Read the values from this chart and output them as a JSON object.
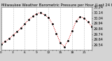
{
  "title": "Milwaukee Weather Barometric Pressure per Hour (Last 24 Hours)",
  "bg_color": "#d4d4d4",
  "plot_bg_color": "#ffffff",
  "line_color": "#cc0000",
  "marker_color": "#000000",
  "grid_color": "#888888",
  "hours": [
    0,
    1,
    2,
    3,
    4,
    5,
    6,
    7,
    8,
    9,
    10,
    11,
    12,
    13,
    14,
    15,
    16,
    17,
    18,
    19,
    20,
    21,
    22,
    23
  ],
  "pressure": [
    29.55,
    29.6,
    29.65,
    29.72,
    29.78,
    29.85,
    29.93,
    30.01,
    30.07,
    30.12,
    30.14,
    30.1,
    30.05,
    29.93,
    29.75,
    29.58,
    29.5,
    29.62,
    29.8,
    29.98,
    30.06,
    30.04,
    29.97,
    29.88
  ],
  "ylim_min": 29.44,
  "ylim_max": 30.24,
  "ytick_values": [
    29.54,
    29.64,
    29.74,
    29.84,
    29.94,
    30.04,
    30.14,
    30.24
  ],
  "ytick_labels": [
    "29.54",
    "29.64",
    "29.74",
    "29.84",
    "29.94",
    "30.04",
    "30.14",
    "30.24"
  ],
  "marker_size": 2.0,
  "line_width": 0.7,
  "font_size": 3.5,
  "title_font_size": 3.8,
  "grid_interval": 3
}
